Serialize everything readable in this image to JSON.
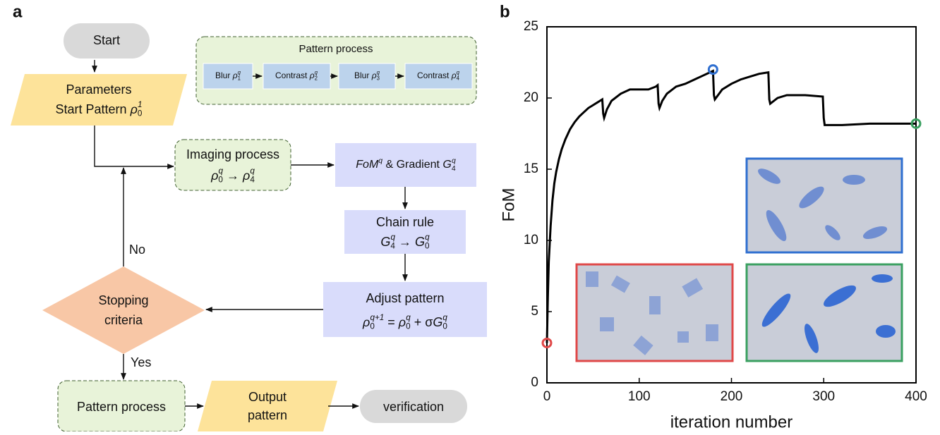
{
  "panel_labels": [
    "a",
    "b"
  ],
  "flowchart": {
    "start": "Start",
    "parameters": {
      "line1": "Parameters",
      "line2": [
        "Start Pattern ",
        {
          "b": "ρ",
          "sub": "0",
          "sup": "1"
        }
      ]
    },
    "pattern_process_top": {
      "title": "Pattern process",
      "steps": [
        [
          "Blur ",
          {
            "b": "ρ",
            "sub": "1",
            "sup": "q"
          }
        ],
        [
          "Contrast ",
          {
            "b": "ρ",
            "sub": "2",
            "sup": "q"
          }
        ],
        [
          "Blur ",
          {
            "b": "ρ",
            "sub": "3",
            "sup": "q"
          }
        ],
        [
          "Contrast ",
          {
            "b": "ρ",
            "sub": "4",
            "sup": "q"
          }
        ]
      ]
    },
    "imaging": {
      "line1": "Imaging process",
      "line2": [
        {
          "b": "ρ",
          "sub": "0",
          "sup": "q"
        },
        " → ",
        {
          "b": "ρ",
          "sub": "4",
          "sup": "q"
        }
      ]
    },
    "fom": [
      {
        "b": "FoM",
        "sup": "q"
      },
      " & Gradient ",
      {
        "b": "G",
        "sub": "4",
        "sup": "q"
      }
    ],
    "chain": {
      "line1": "Chain rule",
      "line2": [
        {
          "b": "G",
          "sub": "4",
          "sup": "q"
        },
        " → ",
        {
          "b": "G",
          "sub": "0",
          "sup": "q"
        }
      ]
    },
    "adjust": {
      "line1": "Adjust pattern",
      "line2": [
        {
          "b": "ρ",
          "sub": "0",
          "sup": "q+1"
        },
        " = ",
        {
          "b": "ρ",
          "sub": "0",
          "sup": "q"
        },
        " + σ",
        {
          "b": "G",
          "sub": "0",
          "sup": "q"
        }
      ]
    },
    "stopping": {
      "line1": "Stopping",
      "line2": "criteria"
    },
    "no": "No",
    "yes": "Yes",
    "pattern_process_bottom": "Pattern process",
    "output": {
      "line1": "Output",
      "line2": "pattern"
    },
    "verification": "verification"
  },
  "chart_data": {
    "type": "line",
    "xlabel": "iteration number",
    "ylabel": "FoM",
    "xlim": [
      0,
      400
    ],
    "xticks": [
      0,
      100,
      200,
      300,
      400
    ],
    "ylim": [
      0,
      25
    ],
    "yticks": [
      0,
      5,
      10,
      15,
      20,
      25
    ],
    "x": [
      0,
      1,
      2,
      4,
      6,
      8,
      10,
      13,
      16,
      20,
      25,
      30,
      35,
      40,
      45,
      50,
      55,
      60,
      61,
      62,
      65,
      70,
      80,
      90,
      100,
      110,
      118,
      120,
      121,
      122,
      125,
      130,
      140,
      150,
      160,
      170,
      180,
      181,
      182,
      190,
      200,
      210,
      220,
      230,
      240,
      241,
      242,
      250,
      260,
      280,
      299,
      300,
      301,
      320,
      350,
      380,
      400
    ],
    "series": [
      {
        "color": "#000000",
        "values": [
          2.8,
          6,
          8.5,
          11,
          12.8,
          14,
          14.8,
          15.7,
          16.4,
          17.1,
          17.8,
          18.3,
          18.7,
          19,
          19.3,
          19.5,
          19.7,
          19.9,
          18.9,
          18.6,
          19.2,
          19.8,
          20.3,
          20.6,
          20.6,
          20.6,
          20.8,
          20.9,
          19.6,
          19.3,
          19.8,
          20.3,
          20.8,
          21,
          21.3,
          21.6,
          21.9,
          20.2,
          19.9,
          20.6,
          21,
          21.3,
          21.5,
          21.7,
          21.8,
          19.9,
          19.6,
          20,
          20.2,
          20.2,
          20.1,
          18.6,
          18.1,
          18.1,
          18.2,
          18.2,
          18.2
        ]
      }
    ],
    "highlight_points": [
      {
        "x": 0,
        "y": 2.8,
        "color": "#e04848"
      },
      {
        "x": 180,
        "y": 22,
        "color": "#2f6fd0"
      },
      {
        "x": 400,
        "y": 18.2,
        "color": "#3aa060"
      }
    ]
  }
}
